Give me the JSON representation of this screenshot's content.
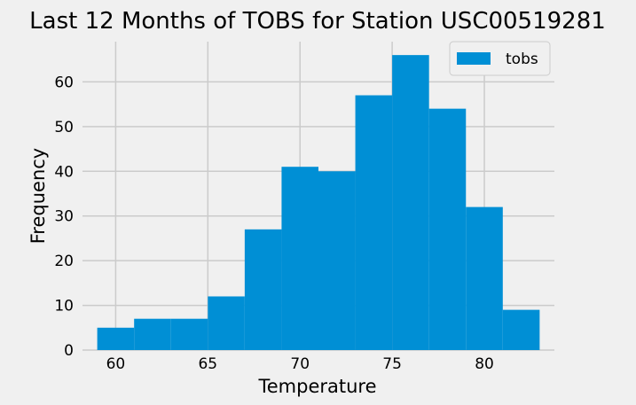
{
  "chart_data": {
    "type": "bar",
    "title": "Last 12 Months of TOBS for Station USC00519281",
    "xlabel": "Temperature",
    "ylabel": "Frequency",
    "bin_edges": [
      59,
      61,
      63,
      65,
      67,
      69,
      71,
      73,
      75,
      77,
      79,
      81,
      83
    ],
    "series": [
      {
        "name": "tobs",
        "values": [
          5,
          7,
          7,
          12,
          27,
          41,
          40,
          57,
          66,
          54,
          32,
          9
        ]
      }
    ],
    "xlim": [
      58.2,
      83.8
    ],
    "ylim": [
      0,
      69
    ],
    "xticks": [
      60,
      65,
      70,
      75,
      80
    ],
    "yticks": [
      0,
      10,
      20,
      30,
      40,
      50,
      60
    ],
    "grid": true,
    "legend_position": "top-right",
    "colors": {
      "bar": "#008fd5",
      "background": "#f0f0f0",
      "grid": "#cbcbcb"
    }
  }
}
